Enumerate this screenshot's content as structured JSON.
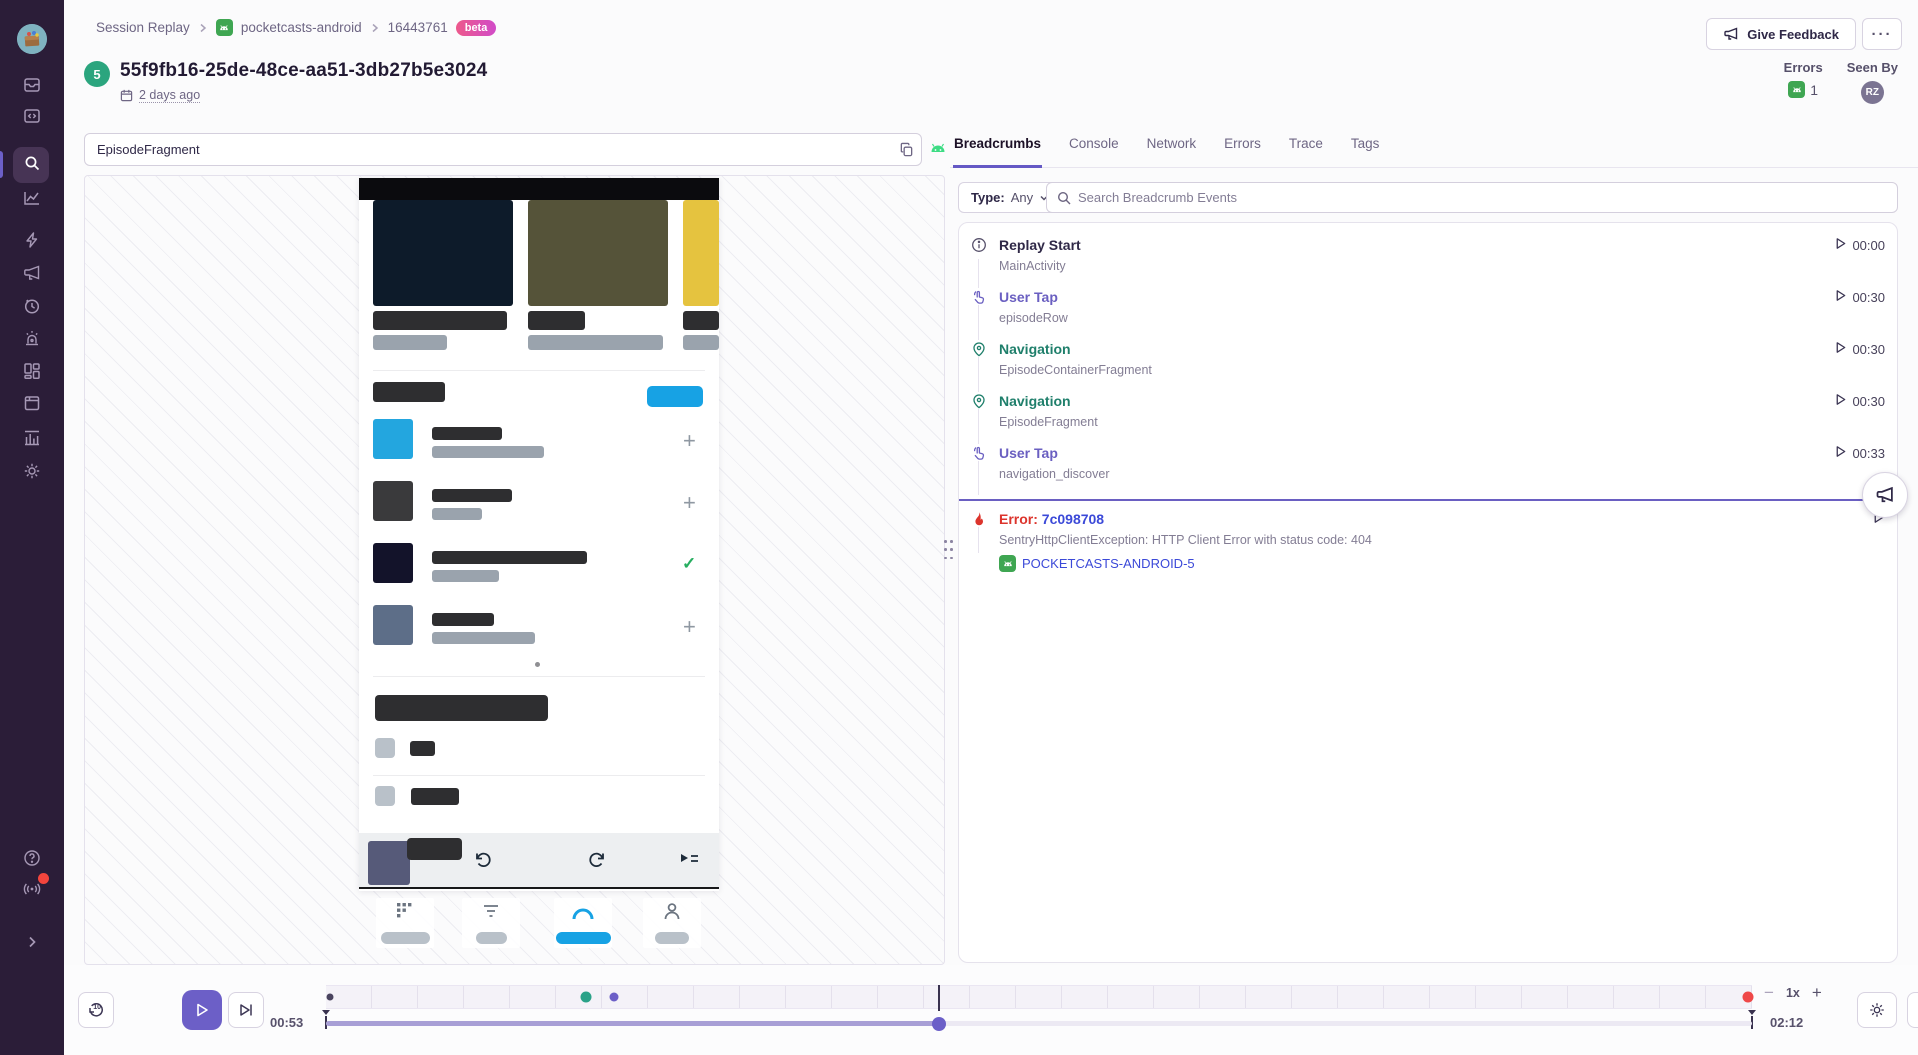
{
  "colors": {
    "accent_purple": "#6C5FC7",
    "link_blue": "#3B49D8",
    "error_red": "#DC342C",
    "navigation_green": "#1F7F6B",
    "android_green": "#3FA652",
    "marker_green": "#2AA288",
    "marker_red": "#EF4848",
    "sidebar_bg": "#2B1D38"
  },
  "sidebar": {
    "items": [
      {
        "name": "issues"
      },
      {
        "name": "projects"
      },
      {
        "name": "explore",
        "active": true
      },
      {
        "name": "stats"
      },
      {
        "name": "performance"
      },
      {
        "name": "feedback"
      },
      {
        "name": "releases"
      },
      {
        "name": "alerts"
      },
      {
        "name": "dashboards"
      },
      {
        "name": "discover"
      },
      {
        "name": "insights"
      },
      {
        "name": "settings"
      }
    ],
    "bottom_items": [
      {
        "name": "help"
      },
      {
        "name": "broadcast",
        "badge": true
      },
      {
        "name": "collapse"
      }
    ]
  },
  "header": {
    "breadcrumb": {
      "section": "Session Replay",
      "project": "pocketcasts-android",
      "replay_id": "16443761",
      "beta": "beta"
    },
    "replay_number": "5",
    "title": "55f9fb16-25de-48ce-aa51-3db27b5e3024",
    "time_ago": "2 days ago",
    "feedback_button": "Give Feedback",
    "more_button": "···",
    "errors_label": "Errors",
    "errors_count": "1",
    "seen_by_label": "Seen By",
    "seen_by_user": "RZ"
  },
  "player": {
    "search_value": "EpisodeFragment",
    "current_time": "00:53",
    "duration": "02:12",
    "speed": "1x",
    "zoom_out": "−",
    "zoom_in": "+",
    "timeline": {
      "progress_pct": 43,
      "markers": [
        {
          "name": "marker-session-start",
          "color": "#4A445F",
          "pct": 0.3,
          "size": 7
        },
        {
          "name": "marker-event-green",
          "color": "#2AA288",
          "pct": 18.2,
          "size": 11
        },
        {
          "name": "marker-event-purple",
          "color": "#6C5FC7",
          "pct": 20.2,
          "size": 9
        },
        {
          "name": "marker-error",
          "color": "#EF4848",
          "pct": 99.7,
          "size": 11
        }
      ]
    }
  },
  "breadcrumbs_panel": {
    "tabs": [
      {
        "label": "Breadcrumbs",
        "active": true
      },
      {
        "label": "Console"
      },
      {
        "label": "Network"
      },
      {
        "label": "Errors"
      },
      {
        "label": "Trace"
      },
      {
        "label": "Tags"
      }
    ],
    "type_filter": {
      "label": "Type:",
      "value": "Any"
    },
    "search_placeholder": "Search Breadcrumb Events",
    "events": [
      {
        "type": "info",
        "title": "Replay Start",
        "description": "MainActivity",
        "time": "00:00"
      },
      {
        "type": "tap",
        "title": "User Tap",
        "description": "episodeRow",
        "time": "00:30"
      },
      {
        "type": "navigation",
        "title": "Navigation",
        "description": "EpisodeContainerFragment",
        "time": "00:30"
      },
      {
        "type": "navigation",
        "title": "Navigation",
        "description": "EpisodeFragment",
        "time": "00:30"
      },
      {
        "type": "tap",
        "title": "User Tap",
        "description": "navigation_discover",
        "time": "00:33"
      },
      {
        "type": "error",
        "title": "Error:",
        "error_id": "7c098708",
        "description": "SentryHttpClientException: HTTP Client Error with status code: 404",
        "project": "POCKETCASTS-ANDROID-5"
      }
    ]
  }
}
